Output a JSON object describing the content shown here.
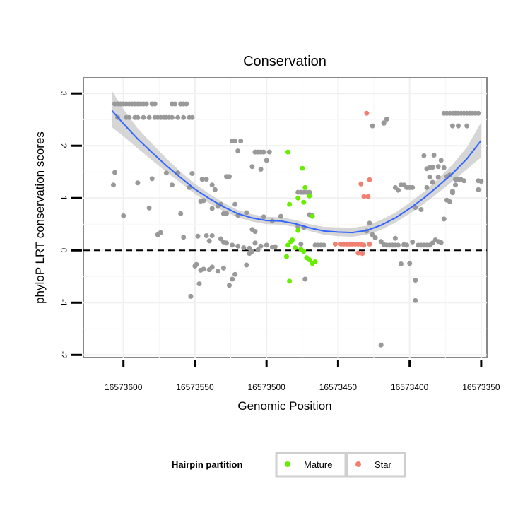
{
  "chart_data": {
    "type": "scatter",
    "title": "Conservation",
    "xlabel": "Genomic Position",
    "ylabel": "phyloP LRT conservation scores",
    "x_reversed": true,
    "xlim": [
      16573628,
      16573346
    ],
    "ylim": [
      -2.05,
      3.3
    ],
    "xticks": [
      16573600,
      16573550,
      16573500,
      16573450,
      16573400,
      16573350
    ],
    "xtick_labels": [
      "16573600",
      "16573550",
      "16573500",
      "16573450",
      "16573400",
      "16573350"
    ],
    "yticks": [
      -2,
      -1,
      0,
      1,
      2,
      3
    ],
    "ytick_labels": [
      "-2",
      "-1",
      "0",
      "1",
      "2",
      "3"
    ],
    "reference_line": {
      "y": 0,
      "style": "dashed"
    },
    "legend": {
      "title": "Hairpin partition",
      "position": "bottom",
      "entries": [
        {
          "label": "Mature",
          "color": "#66ee00"
        },
        {
          "label": "Star",
          "color": "#f08070"
        }
      ]
    },
    "colors": {
      "Other": "#999999",
      "Mature": "#66ee00",
      "Star": "#f08070",
      "smooth": "#3366ff",
      "ribbon": "#cccccc"
    },
    "series": [
      {
        "name": "Other",
        "points": [
          [
            16573606,
            2.8
          ],
          [
            16573604,
            2.8
          ],
          [
            16573602,
            2.8
          ],
          [
            16573600,
            2.8
          ],
          [
            16573598,
            2.8
          ],
          [
            16573596,
            2.8
          ],
          [
            16573594,
            2.8
          ],
          [
            16573592,
            2.8
          ],
          [
            16573590,
            2.8
          ],
          [
            16573588,
            2.8
          ],
          [
            16573586,
            2.8
          ],
          [
            16573584,
            2.8
          ],
          [
            16573580,
            2.8
          ],
          [
            16573578,
            2.8
          ],
          [
            16573566,
            2.8
          ],
          [
            16573564,
            2.8
          ],
          [
            16573560,
            2.8
          ],
          [
            16573558,
            2.8
          ],
          [
            16573556,
            2.8
          ],
          [
            16573604,
            2.54
          ],
          [
            16573598,
            2.54
          ],
          [
            16573596,
            2.54
          ],
          [
            16573592,
            2.54
          ],
          [
            16573590,
            2.54
          ],
          [
            16573586,
            2.54
          ],
          [
            16573582,
            2.54
          ],
          [
            16573578,
            2.54
          ],
          [
            16573576,
            2.54
          ],
          [
            16573574,
            2.54
          ],
          [
            16573572,
            2.54
          ],
          [
            16573570,
            2.54
          ],
          [
            16573568,
            2.54
          ],
          [
            16573566,
            2.54
          ],
          [
            16573562,
            2.54
          ],
          [
            16573558,
            2.54
          ],
          [
            16573554,
            2.54
          ],
          [
            16573552,
            2.54
          ],
          [
            16573606,
            1.49
          ],
          [
            16573607,
            1.25
          ],
          [
            16573590,
            1.29
          ],
          [
            16573580,
            1.37
          ],
          [
            16573570,
            1.48
          ],
          [
            16573566,
            1.25
          ],
          [
            16573562,
            1.48
          ],
          [
            16573600,
            0.66
          ],
          [
            16573582,
            0.81
          ],
          [
            16573576,
            0.3
          ],
          [
            16573574,
            0.34
          ],
          [
            16573560,
            0.7
          ],
          [
            16573558,
            0.25
          ],
          [
            16573554,
            1.2
          ],
          [
            16573552,
            1.47
          ],
          [
            16573545,
            1.36
          ],
          [
            16573542,
            1.36
          ],
          [
            16573538,
            1.25
          ],
          [
            16573536,
            1.16
          ],
          [
            16573528,
            1.41
          ],
          [
            16573526,
            1.41
          ],
          [
            16573546,
            0.94
          ],
          [
            16573544,
            0.95
          ],
          [
            16573538,
            0.8
          ],
          [
            16573534,
            0.84
          ],
          [
            16573530,
            0.7
          ],
          [
            16573532,
            0.88
          ],
          [
            16573528,
            0.7
          ],
          [
            16573522,
            0.88
          ],
          [
            16573520,
            0.67
          ],
          [
            16573514,
            0.72
          ],
          [
            16573510,
            0.4
          ],
          [
            16573508,
            0.36
          ],
          [
            16573524,
            2.09
          ],
          [
            16573522,
            2.09
          ],
          [
            16573518,
            2.09
          ],
          [
            16573520,
            1.9
          ],
          [
            16573508,
            1.88
          ],
          [
            16573506,
            1.88
          ],
          [
            16573504,
            1.88
          ],
          [
            16573502,
            1.88
          ],
          [
            16573498,
            1.88
          ],
          [
            16573500,
            1.72
          ],
          [
            16573504,
            1.55
          ],
          [
            16573510,
            1.6
          ],
          [
            16573542,
            0.28
          ],
          [
            16573540,
            0.18
          ],
          [
            16573538,
            0.28
          ],
          [
            16573532,
            0.22
          ],
          [
            16573530,
            0.16
          ],
          [
            16573528,
            0.14
          ],
          [
            16573524,
            0.1
          ],
          [
            16573520,
            0.08
          ],
          [
            16573516,
            0.05
          ],
          [
            16573512,
            0.04
          ],
          [
            16573508,
            0.14
          ],
          [
            16573504,
            0.08
          ],
          [
            16573548,
            0.27
          ],
          [
            16573553,
            -0.88
          ],
          [
            16573550,
            -0.3
          ],
          [
            16573549,
            -0.27
          ],
          [
            16573546,
            -0.38
          ],
          [
            16573547,
            -0.64
          ],
          [
            16573544,
            -0.36
          ],
          [
            16573540,
            -0.37
          ],
          [
            16573538,
            -0.32
          ],
          [
            16573534,
            -0.4
          ],
          [
            16573530,
            -0.34
          ],
          [
            16573526,
            -0.67
          ],
          [
            16573524,
            -0.55
          ],
          [
            16573522,
            -0.46
          ],
          [
            16573514,
            -0.28
          ],
          [
            16573512,
            -0.06
          ],
          [
            16573510,
            -0.02
          ],
          [
            16573506,
            0.01
          ],
          [
            16573500,
            0.1
          ],
          [
            16573496,
            0.06
          ],
          [
            16573494,
            0.07
          ],
          [
            16573502,
            0.64
          ],
          [
            16573496,
            0.56
          ],
          [
            16573490,
            0.65
          ],
          [
            16573478,
            0.45
          ],
          [
            16573476,
            0.12
          ],
          [
            16573474,
            0.44
          ],
          [
            16573473,
            -0.55
          ],
          [
            16573470,
            0.68
          ],
          [
            16573468,
            0.66
          ],
          [
            16573466,
            0.1
          ],
          [
            16573464,
            0.1
          ],
          [
            16573462,
            0.1
          ],
          [
            16573460,
            0.1
          ],
          [
            16573478,
            1.11
          ],
          [
            16573476,
            1.11
          ],
          [
            16573474,
            1.11
          ],
          [
            16573472,
            1.11
          ],
          [
            16573470,
            1.11
          ],
          [
            16573426,
            2.38
          ],
          [
            16573418,
            2.43
          ],
          [
            16573416,
            2.51
          ],
          [
            16573418,
            2.44
          ],
          [
            16573428,
            0.52
          ],
          [
            16573430,
            0.37
          ],
          [
            16573426,
            0.3
          ],
          [
            16573424,
            0.24
          ],
          [
            16573420,
            0.17
          ],
          [
            16573418,
            0.11
          ],
          [
            16573416,
            0.1
          ],
          [
            16573414,
            0.1
          ],
          [
            16573412,
            0.1
          ],
          [
            16573410,
            0.1
          ],
          [
            16573420,
            -1.81
          ],
          [
            16573410,
            0.23
          ],
          [
            16573408,
            0.1
          ],
          [
            16573406,
            -0.26
          ],
          [
            16573404,
            0.11
          ],
          [
            16573402,
            0.1
          ],
          [
            16573400,
            -0.25
          ],
          [
            16573398,
            0.16
          ],
          [
            16573396,
            -0.57
          ],
          [
            16573396,
            -0.96
          ],
          [
            16573394,
            0.1
          ],
          [
            16573392,
            0.1
          ],
          [
            16573390,
            0.1
          ],
          [
            16573388,
            0.1
          ],
          [
            16573386,
            0.1
          ],
          [
            16573384,
            0.14
          ],
          [
            16573380,
            0.17
          ],
          [
            16573378,
            0.15
          ],
          [
            16573410,
            1.2
          ],
          [
            16573408,
            1.15
          ],
          [
            16573406,
            1.25
          ],
          [
            16573404,
            1.25
          ],
          [
            16573402,
            1.2
          ],
          [
            16573400,
            1.2
          ],
          [
            16573398,
            1.2
          ],
          [
            16573396,
            0.82
          ],
          [
            16573392,
            0.78
          ],
          [
            16573388,
            1.2
          ],
          [
            16573386,
            1.4
          ],
          [
            16573384,
            1.3
          ],
          [
            16573382,
            0.2
          ],
          [
            16573380,
            1.4
          ],
          [
            16573378,
            1.72
          ],
          [
            16573376,
            1.58
          ],
          [
            16573374,
            1.41
          ],
          [
            16573372,
            1.44
          ],
          [
            16573370,
            1.1
          ],
          [
            16573368,
            1.25
          ],
          [
            16573390,
            1.81
          ],
          [
            16573388,
            1.56
          ],
          [
            16573386,
            1.58
          ],
          [
            16573384,
            1.59
          ],
          [
            16573383,
            1.82
          ],
          [
            16573380,
            1.6
          ],
          [
            16573376,
            0.6
          ],
          [
            16573374,
            0.96
          ],
          [
            16573372,
            0.93
          ],
          [
            16573370,
            1.13
          ],
          [
            16573368,
            1.36
          ],
          [
            16573366,
            1.36
          ],
          [
            16573364,
            1.35
          ],
          [
            16573362,
            1.33
          ],
          [
            16573376,
            2.62
          ],
          [
            16573374,
            2.62
          ],
          [
            16573372,
            2.62
          ],
          [
            16573370,
            2.62
          ],
          [
            16573368,
            2.62
          ],
          [
            16573366,
            2.62
          ],
          [
            16573364,
            2.62
          ],
          [
            16573362,
            2.62
          ],
          [
            16573360,
            2.62
          ],
          [
            16573358,
            2.62
          ],
          [
            16573356,
            2.62
          ],
          [
            16573354,
            2.62
          ],
          [
            16573352,
            2.62
          ],
          [
            16573370,
            2.38
          ],
          [
            16573366,
            2.38
          ],
          [
            16573360,
            2.38
          ],
          [
            16573352,
            1.33
          ],
          [
            16573350,
            1.32
          ],
          [
            16573352,
            1.16
          ]
        ]
      },
      {
        "name": "Mature",
        "points": [
          [
            16573485,
            1.88
          ],
          [
            16573475,
            1.57
          ],
          [
            16573473,
            1.2
          ],
          [
            16573484,
            0.88
          ],
          [
            16573478,
            1.0
          ],
          [
            16573474,
            0.92
          ],
          [
            16573470,
            1.04
          ],
          [
            16573468,
            0.65
          ],
          [
            16573485,
            0.1
          ],
          [
            16573483,
            0.17
          ],
          [
            16573480,
            0.05
          ],
          [
            16573478,
            0.38
          ],
          [
            16573476,
            0.02
          ],
          [
            16573474,
            -0.02
          ],
          [
            16573472,
            -0.14
          ],
          [
            16573470,
            -0.18
          ],
          [
            16573468,
            -0.25
          ],
          [
            16573466,
            -0.22
          ],
          [
            16573486,
            -0.12
          ],
          [
            16573482,
            0.2
          ],
          [
            16573484,
            -0.59
          ]
        ]
      },
      {
        "name": "Star",
        "points": [
          [
            16573430,
            2.62
          ],
          [
            16573434,
            1.27
          ],
          [
            16573428,
            1.35
          ],
          [
            16573432,
            1.03
          ],
          [
            16573429,
            1.03
          ],
          [
            16573452,
            0.12
          ],
          [
            16573448,
            0.12
          ],
          [
            16573446,
            0.12
          ],
          [
            16573444,
            0.12
          ],
          [
            16573442,
            0.12
          ],
          [
            16573440,
            0.12
          ],
          [
            16573438,
            0.12
          ],
          [
            16573436,
            0.12
          ],
          [
            16573434,
            0.12
          ],
          [
            16573432,
            0.1
          ],
          [
            16573436,
            -0.05
          ],
          [
            16573433,
            -0.06
          ],
          [
            16573428,
            0.12
          ]
        ]
      }
    ],
    "smooth": {
      "x": [
        16573608,
        16573600,
        16573590,
        16573580,
        16573570,
        16573560,
        16573550,
        16573540,
        16573530,
        16573520,
        16573510,
        16573500,
        16573490,
        16573480,
        16573470,
        16573460,
        16573450,
        16573440,
        16573430,
        16573420,
        16573410,
        16573400,
        16573390,
        16573380,
        16573370,
        16573360,
        16573350
      ],
      "y": [
        2.67,
        2.42,
        2.13,
        1.87,
        1.62,
        1.39,
        1.17,
        0.99,
        0.83,
        0.7,
        0.62,
        0.57,
        0.56,
        0.51,
        0.43,
        0.37,
        0.35,
        0.34,
        0.38,
        0.48,
        0.62,
        0.8,
        1.0,
        1.23,
        1.47,
        1.75,
        2.1
      ],
      "lower": [
        2.35,
        2.18,
        1.95,
        1.72,
        1.5,
        1.29,
        1.08,
        0.9,
        0.75,
        0.63,
        0.55,
        0.5,
        0.49,
        0.45,
        0.37,
        0.3,
        0.27,
        0.26,
        0.3,
        0.39,
        0.53,
        0.7,
        0.89,
        1.1,
        1.32,
        1.55,
        1.78
      ],
      "upper": [
        3.05,
        2.7,
        2.33,
        2.04,
        1.76,
        1.5,
        1.27,
        1.08,
        0.91,
        0.77,
        0.69,
        0.64,
        0.63,
        0.58,
        0.5,
        0.45,
        0.44,
        0.43,
        0.47,
        0.58,
        0.72,
        0.91,
        1.12,
        1.37,
        1.64,
        1.97,
        2.45
      ]
    }
  }
}
